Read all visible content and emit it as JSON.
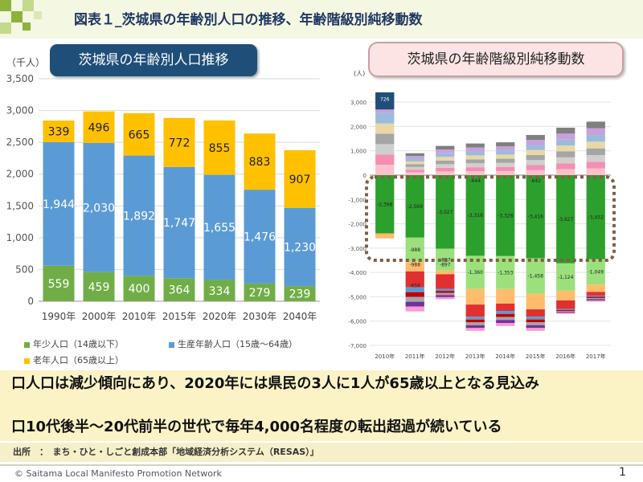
{
  "header": {
    "title": "図表１_茨城県の年齢別人口の推移、年齢階級別純移動数"
  },
  "left_panel": {
    "pill": "茨城県の年齢別人口推移"
  },
  "right_panel": {
    "pill": "茨城県の年齢階級別純移動数"
  },
  "chart_data": [
    {
      "type": "bar",
      "stacked": true,
      "categories": [
        "1990年",
        "2000年",
        "2010年",
        "2015年",
        "2020年",
        "2030年",
        "2040年"
      ],
      "series": [
        {
          "name": "年少人口（14歳以下）",
          "color": "#70ad47",
          "values": [
            559,
            459,
            400,
            364,
            334,
            279,
            239
          ]
        },
        {
          "name": "生産年齢人口（15歳～64歳）",
          "color": "#5b9bd5",
          "values": [
            1944,
            2030,
            1892,
            1747,
            1655,
            1476,
            1230
          ]
        },
        {
          "name": "老年人口（65歳以上）",
          "color": "#ffc000",
          "values": [
            339,
            496,
            665,
            772,
            855,
            883,
            907
          ]
        }
      ],
      "ylabel": "（千人）",
      "ylim": [
        0,
        3500
      ],
      "yticks": [
        "0",
        "500",
        "1,000",
        "1,500",
        "2,000",
        "2,500",
        "3,000",
        "3,500"
      ],
      "grid": true,
      "legend": "bottom"
    },
    {
      "type": "bar",
      "stacked": true,
      "ylabel": "(人)",
      "ylim": [
        -7000,
        3500
      ],
      "yticks": [
        "-7,000",
        "-6,000",
        "-5,000",
        "-4,000",
        "-3,000",
        "-2,000",
        "-1,000",
        "0",
        "1,000",
        "2,000",
        "3,000"
      ],
      "categories": [
        "2010年",
        "2011年",
        "2012年",
        "2013年",
        "2014年",
        "2015年",
        "2016年",
        "2017年"
      ],
      "highlight_values": [
        {
          "category": "2010年",
          "value": 726,
          "label": "726"
        },
        {
          "category": "2011年",
          "value": -988,
          "label": "-988"
        },
        {
          "category": "2011年",
          "value": -656,
          "label": "-656"
        },
        {
          "category": "2012年",
          "value": -897,
          "label": "-897"
        },
        {
          "category": "2013年",
          "value": -644,
          "label": "-644"
        },
        {
          "category": "2015年",
          "value": -642,
          "label": "-642"
        }
      ],
      "series": [
        {
          "color": "#2ca02c",
          "label_key": "15-19 to 20-24 (green)",
          "values": [
            -2398,
            -2569,
            -3027,
            -3316,
            -3328,
            -3416,
            -3627,
            -3452
          ]
        },
        {
          "color": "#9be07d",
          "values": [
            0,
            -988,
            -897,
            -1360,
            -1353,
            -1458,
            -1124,
            -1049
          ]
        },
        {
          "color": "#ffbd6b",
          "values": [
            -200,
            -400,
            -150,
            -644,
            -600,
            -642,
            -400,
            -300
          ]
        },
        {
          "color": "#e03030",
          "values": [
            0,
            -656,
            -600,
            -500,
            -300,
            -300,
            -350,
            -150
          ]
        }
      ],
      "segment_labels": {
        "green": [
          "-2,398",
          "-2,569",
          "-3,027",
          "-3,316",
          "-3,328",
          "-3,416",
          "-3,627",
          "-3,452"
        ],
        "lightgreen": [
          "",
          "-988",
          "-897",
          "-1,360",
          "-1,353",
          "-1,458",
          "-1,124",
          "-1,049"
        ]
      },
      "positive_totals": [
        3400,
        900,
        1200,
        1300,
        1350,
        1650,
        1950,
        2200
      ],
      "negative_totals": [
        -2600,
        -5600,
        -5100,
        -6400,
        -6200,
        -6400,
        -5700,
        -5200
      ],
      "grid": true,
      "highlight_box": true
    }
  ],
  "bullets": [
    "口人口は減少傾向にあり、2020年には県民の3人に1人が65歳以上となる見込み",
    "口10代後半～20代前半の世代で毎年4,000名程度の転出超過が続いている"
  ],
  "source": "出所　：　まち・ひと・しごと創成本部「地域経済分析システム（RESAS）」",
  "footer": {
    "copyright": "© Saitama Local Manifesto Promotion Network",
    "page": "1"
  }
}
